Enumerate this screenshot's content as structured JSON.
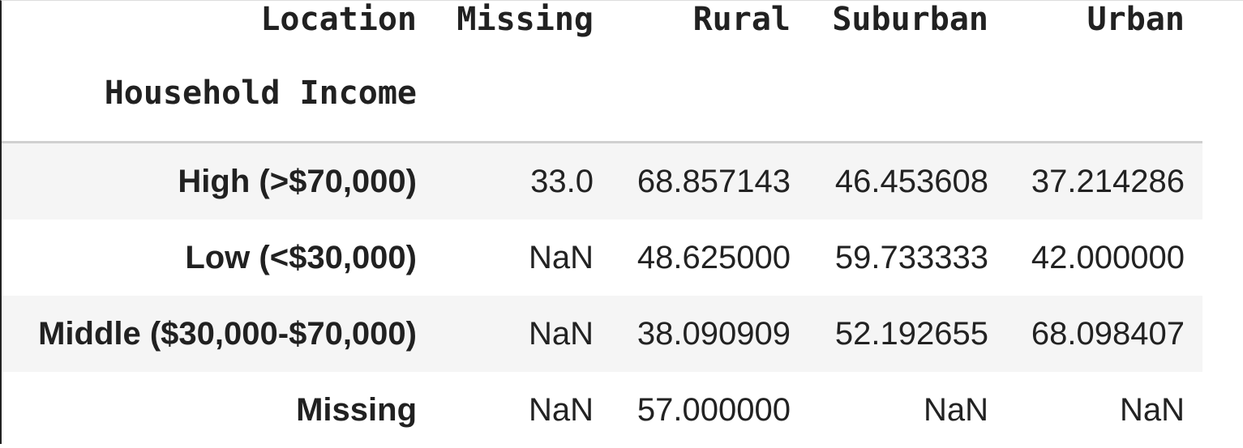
{
  "table": {
    "columns_name": "Location",
    "index_name": "Household Income",
    "columns": [
      "Missing",
      "Rural",
      "Suburban",
      "Urban"
    ],
    "rows": [
      {
        "label": "High (>$70,000)",
        "values": [
          "33.0",
          "68.857143",
          "46.453608",
          "37.214286"
        ]
      },
      {
        "label": "Low (<$30,000)",
        "values": [
          "NaN",
          "48.625000",
          "59.733333",
          "42.000000"
        ]
      },
      {
        "label": "Middle ($30,000-$70,000)",
        "values": [
          "NaN",
          "38.090909",
          "52.192655",
          "68.098407"
        ]
      },
      {
        "label": "Missing",
        "values": [
          "NaN",
          "57.000000",
          "NaN",
          "NaN"
        ]
      }
    ]
  }
}
